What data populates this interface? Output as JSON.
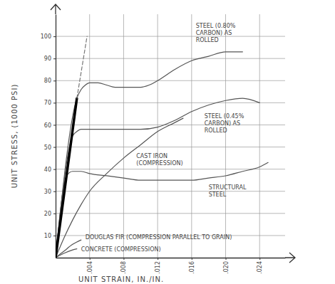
{
  "chart_data": {
    "type": "line",
    "xlabel": "UNIT STRAIN, IN./IN.",
    "ylabel": "UNIT STRESS, (1000 PSI)",
    "xlim": [
      0,
      0.027
    ],
    "ylim": [
      0,
      110
    ],
    "xticks": [
      {
        "value": 0.004,
        "label": ".004"
      },
      {
        "value": 0.008,
        "label": ".008"
      },
      {
        "value": 0.012,
        "label": ".012"
      },
      {
        "value": 0.016,
        "label": ".016"
      },
      {
        "value": 0.02,
        "label": ".020"
      },
      {
        "value": 0.024,
        "label": ".024"
      }
    ],
    "yticks": [
      10,
      20,
      30,
      40,
      50,
      60,
      70,
      80,
      90,
      100
    ],
    "grid": true,
    "series": [
      {
        "name": "STEEL (0.80% CARBON) AS ROLLED",
        "color": "#555555",
        "line_style": "solid",
        "x": [
          0,
          0.0025,
          0.003,
          0.0035,
          0.004,
          0.005,
          0.006,
          0.007,
          0.008,
          0.009,
          0.01,
          0.011,
          0.012,
          0.014,
          0.016,
          0.018,
          0.02,
          0.022
        ],
        "values": [
          0,
          72,
          76,
          78,
          79,
          79,
          78,
          77,
          77,
          77,
          77,
          78,
          80,
          85,
          89,
          91,
          93,
          93
        ]
      },
      {
        "name": "STEEL (0.45% CARBON) AS ROLLED",
        "color": "#555555",
        "line_style": "solid",
        "x": [
          0,
          0.002,
          0.0025,
          0.003,
          0.004,
          0.006,
          0.008,
          0.01,
          0.012,
          0.014,
          0.016,
          0.018,
          0.02,
          0.022,
          0.024
        ],
        "values": [
          0,
          55,
          57,
          58,
          58,
          58,
          58,
          58,
          59,
          62,
          66,
          69,
          71,
          72,
          70
        ]
      },
      {
        "name": "CAST IRON (COMPRESSION)",
        "color": "#555555",
        "line_style": "solid",
        "x": [
          0,
          0.001,
          0.002,
          0.003,
          0.004,
          0.006,
          0.008,
          0.01,
          0.012,
          0.014,
          0.015
        ],
        "values": [
          0,
          9,
          17,
          24,
          30,
          38,
          45,
          51,
          57,
          61,
          63
        ]
      },
      {
        "name": "STRUCTURAL STEEL",
        "color": "#555555",
        "line_style": "solid",
        "x": [
          0,
          0.0013,
          0.002,
          0.003,
          0.004,
          0.006,
          0.008,
          0.01,
          0.012,
          0.014,
          0.016,
          0.018,
          0.02,
          0.022,
          0.024,
          0.025
        ],
        "values": [
          0,
          37,
          39,
          39,
          38,
          37,
          36,
          35,
          35,
          35,
          35,
          36,
          37,
          39,
          41,
          43
        ]
      },
      {
        "name": "DOUGLAS FIR (COMPRESSION PARALLEL TO GRAIN)",
        "color": "#555555",
        "line_style": "solid",
        "x": [
          0,
          0.001,
          0.002,
          0.003
        ],
        "values": [
          0,
          3,
          6,
          8
        ]
      },
      {
        "name": "CONCRETE (COMPRESSION)",
        "color": "#555555",
        "line_style": "solid",
        "x": [
          0,
          0.001,
          0.002,
          0.0025
        ],
        "values": [
          0,
          2,
          3.5,
          4
        ]
      },
      {
        "color": "#000000",
        "line_style": "solid",
        "x": [
          0,
          0.0025
        ],
        "values": [
          0,
          72
        ]
      },
      {
        "color": "#777777",
        "line_style": "dashed",
        "x": [
          0.0025,
          0.0037
        ],
        "values": [
          72,
          100
        ]
      }
    ]
  }
}
